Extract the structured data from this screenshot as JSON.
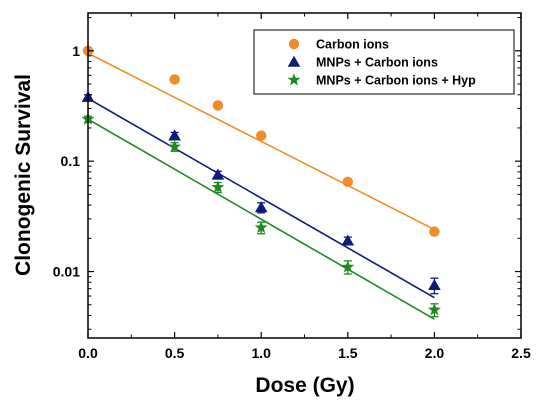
{
  "chart_data": {
    "type": "scatter",
    "xlabel": "Dose (Gy)",
    "ylabel": "Clonogenic Survival",
    "xlim": [
      0,
      2.5
    ],
    "ylim": [
      0.0025,
      2.2
    ],
    "y_scale": "log",
    "x_ticks": [
      0.0,
      0.5,
      1.0,
      1.5,
      2.0,
      2.5
    ],
    "x_tick_labels": [
      "0.0",
      "0.5",
      "1.0",
      "1.5",
      "2.0",
      "2.5"
    ],
    "y_ticks": [
      0.01,
      0.1,
      1
    ],
    "y_tick_labels": [
      "0.01",
      "0.1",
      "1"
    ],
    "grid": false,
    "legend_position": "top-right",
    "series": [
      {
        "name": "Carbon ions",
        "marker": "circle",
        "color": "#F28C28",
        "x": [
          0,
          0.5,
          0.75,
          1.0,
          1.5,
          2.0
        ],
        "y": [
          1.0,
          0.55,
          0.32,
          0.17,
          0.065,
          0.023
        ],
        "yerr": [
          0.03,
          0.03,
          0.02,
          0.01,
          0.004,
          0.0015
        ],
        "fit": [
          [
            0,
            0.95
          ],
          [
            2.0,
            0.024
          ]
        ]
      },
      {
        "name": "MNPs + Carbon ions",
        "marker": "triangle",
        "color": "#0D1B7A",
        "x": [
          0,
          0.5,
          0.75,
          1.0,
          1.5,
          2.0
        ],
        "y": [
          0.38,
          0.17,
          0.075,
          0.038,
          0.019,
          0.0075
        ],
        "yerr": [
          0.02,
          0.012,
          0.006,
          0.004,
          0.0015,
          0.0012
        ],
        "fit": [
          [
            0,
            0.37
          ],
          [
            2.0,
            0.0058
          ]
        ]
      },
      {
        "name": "MNPs + Carbon ions + Hyp",
        "marker": "star",
        "color": "#1F8A1F",
        "x": [
          0,
          0.5,
          0.75,
          1.0,
          1.5,
          2.0
        ],
        "y": [
          0.24,
          0.135,
          0.058,
          0.025,
          0.011,
          0.0045
        ],
        "yerr": [
          0.015,
          0.012,
          0.006,
          0.003,
          0.0015,
          0.0006
        ],
        "fit": [
          [
            0,
            0.24
          ],
          [
            2.0,
            0.0037
          ]
        ]
      }
    ]
  }
}
